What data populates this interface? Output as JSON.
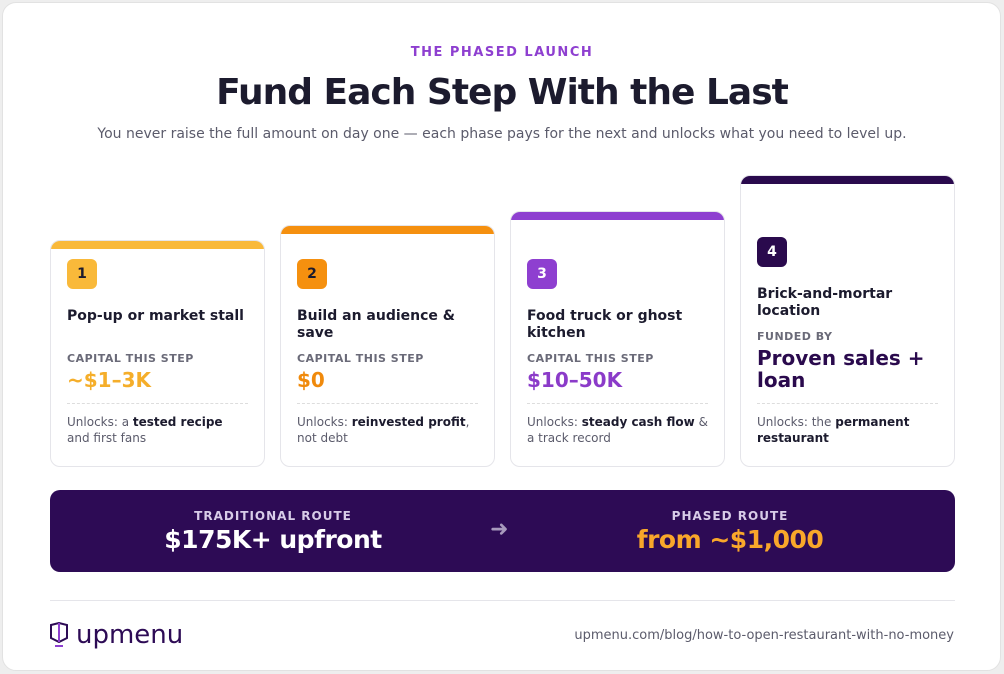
{
  "header": {
    "eyebrow": "THE PHASED LAUNCH",
    "title": "Fund Each Step With the Last",
    "subtitle": "You never raise the full amount on day one — each phase pays for the next and unlocks what you need to level up."
  },
  "steps": [
    {
      "badge": "1",
      "color": "#f9b93a",
      "value_color": "#f5ae2a",
      "title": "Pop-up or market stall",
      "label": "CAPITAL THIS STEP",
      "value": "~$1–3K",
      "unlocks": [
        {
          "text": "Unlocks: a "
        },
        {
          "text": "tested recipe",
          "bold": true
        },
        {
          "text": " and first fans"
        }
      ]
    },
    {
      "badge": "2",
      "color": "#f5900f",
      "value_color": "#f08a0c",
      "title": "Build an audience & save",
      "label": "CAPITAL THIS STEP",
      "value": "$0",
      "unlocks": [
        {
          "text": "Unlocks: "
        },
        {
          "text": "reinvested profit",
          "bold": true
        },
        {
          "text": ", not debt"
        }
      ]
    },
    {
      "badge": "3",
      "color": "#8e3fd0",
      "value_color": "#8b3bc9",
      "title": "Food truck or ghost kitchen",
      "label": "CAPITAL THIS STEP",
      "value": "$10–50K",
      "unlocks": [
        {
          "text": "Unlocks: "
        },
        {
          "text": "steady cash flow",
          "bold": true
        },
        {
          "text": " & a track record"
        }
      ]
    },
    {
      "badge": "4",
      "color": "#2a0a4d",
      "value_color": "#2a0a4d",
      "title": "Brick-and-mortar location",
      "label": "FUNDED BY",
      "value": "Proven sales + loan",
      "unlocks": [
        {
          "text": "Unlocks: the "
        },
        {
          "text": "permanent restaurant",
          "bold": true
        }
      ]
    }
  ],
  "banner": {
    "left_label": "TRADITIONAL ROUTE",
    "left_value": "$175K+ upfront",
    "arrow": "➜",
    "right_label": "PHASED ROUTE",
    "right_value": "from ~$1,000"
  },
  "footer": {
    "brand": "upmenu",
    "url": "upmenu.com/blog/how-to-open-restaurant-with-no-money"
  }
}
